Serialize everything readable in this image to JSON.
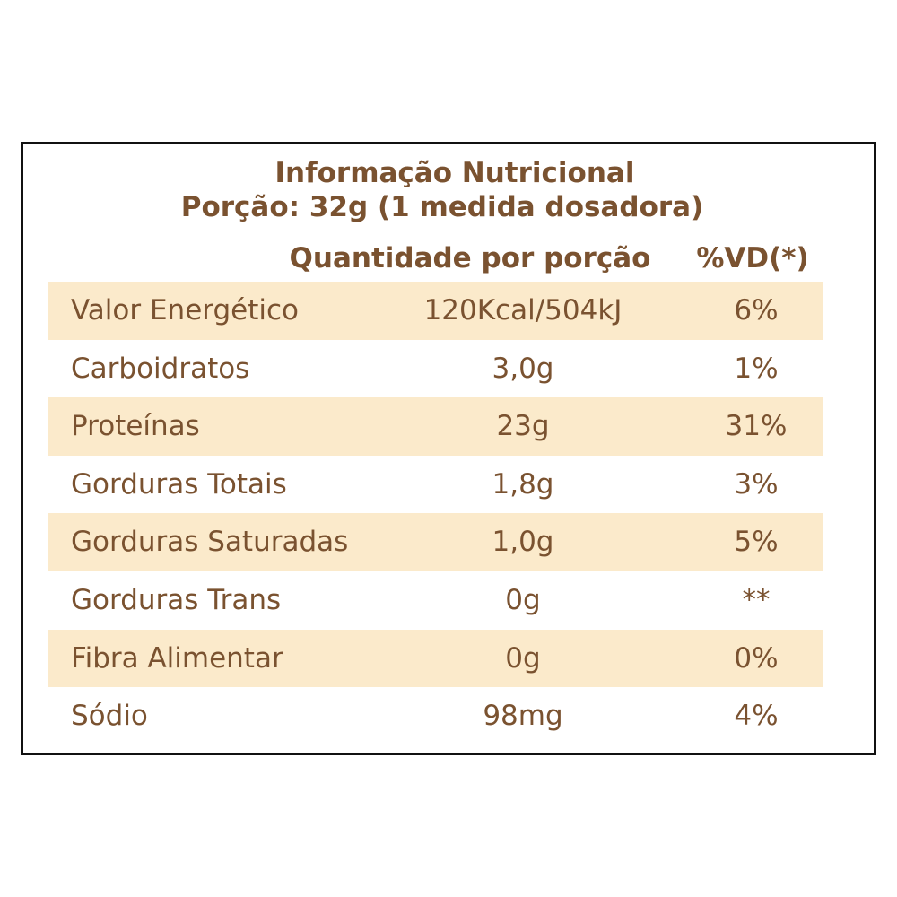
{
  "label": {
    "title": "Informação Nutricional",
    "serving": "Porção: 32g (1 medida dosadora)",
    "col_quantity": "Quantidade por porção",
    "col_vd": "%VD(*)"
  },
  "rows": [
    {
      "name": "Valor Energético",
      "amount": "120Kcal/504kJ",
      "vd": "6%",
      "shaded": true
    },
    {
      "name": "Carboidratos",
      "amount": "3,0g",
      "vd": "1%",
      "shaded": false
    },
    {
      "name": "Proteínas",
      "amount": "23g",
      "vd": "31%",
      "shaded": true
    },
    {
      "name": "Gorduras Totais",
      "amount": "1,8g",
      "vd": "3%",
      "shaded": false
    },
    {
      "name": "Gorduras Saturadas",
      "amount": "1,0g",
      "vd": "5%",
      "shaded": true
    },
    {
      "name": "Gorduras Trans",
      "amount": "0g",
      "vd": "**",
      "shaded": false
    },
    {
      "name": "Fibra Alimentar",
      "amount": "0g",
      "vd": "0%",
      "shaded": true
    },
    {
      "name": "Sódio",
      "amount": "98mg",
      "vd": "4%",
      "shaded": false
    }
  ],
  "colors": {
    "text": "#7a5230",
    "row_shade": "#fbeacb",
    "border": "#111111"
  }
}
